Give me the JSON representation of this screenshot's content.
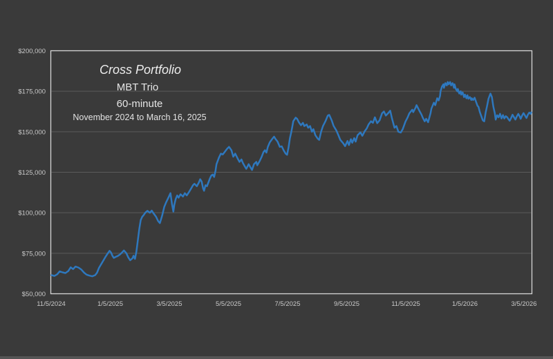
{
  "page": {
    "background_color": "#3A3A3A",
    "bottom_strip_color": "#555555"
  },
  "chart_data": {
    "type": "line",
    "title": "Cross Portfolio",
    "strategy": "MBT Trio",
    "timeframe": "60-minute",
    "date_range": "November 2024 to March 16, 2025",
    "legend": "none",
    "grid": true,
    "colors": {
      "line": "#2E78BE",
      "plot_border": "#D6D6D6",
      "gridline": "#5B5B5B",
      "axis_text": "#C9C9C9",
      "title_text": "#EDEDED",
      "background": "#3A3A3A"
    },
    "x_axis": {
      "tick_labels": [
        "11/5/2024",
        "1/5/2025",
        "3/5/2025",
        "5/5/2025",
        "7/5/2025",
        "9/5/2025",
        "11/5/2025",
        "1/5/2026",
        "3/5/2026"
      ]
    },
    "y_axis": {
      "tick_labels": [
        "$200,000",
        "$175,000",
        "$150,000",
        "$125,000",
        "$100,000",
        "$75,000",
        "$50,000"
      ],
      "min": 50000,
      "max": 200000,
      "step": 25000
    },
    "point_format": "[x_fraction_of_time_axis, equity_value_in_thousands_USD]",
    "points": [
      [
        0.0,
        61.5
      ],
      [
        0.006,
        61.0
      ],
      [
        0.012,
        62.0
      ],
      [
        0.017,
        63.8
      ],
      [
        0.023,
        63.2
      ],
      [
        0.029,
        62.8
      ],
      [
        0.035,
        64.0
      ],
      [
        0.04,
        66.3
      ],
      [
        0.045,
        65.2
      ],
      [
        0.05,
        66.8
      ],
      [
        0.056,
        66.2
      ],
      [
        0.062,
        65.0
      ],
      [
        0.068,
        63.0
      ],
      [
        0.073,
        61.8
      ],
      [
        0.079,
        61.2
      ],
      [
        0.085,
        60.8
      ],
      [
        0.091,
        61.5
      ],
      [
        0.095,
        63.0
      ],
      [
        0.099,
        66.0
      ],
      [
        0.104,
        68.5
      ],
      [
        0.108,
        70.5
      ],
      [
        0.112,
        72.5
      ],
      [
        0.117,
        74.8
      ],
      [
        0.121,
        76.5
      ],
      [
        0.124,
        75.5
      ],
      [
        0.127,
        73.5
      ],
      [
        0.13,
        72.1
      ],
      [
        0.134,
        72.8
      ],
      [
        0.138,
        73.3
      ],
      [
        0.143,
        74.3
      ],
      [
        0.147,
        75.5
      ],
      [
        0.151,
        76.7
      ],
      [
        0.156,
        75.0
      ],
      [
        0.16,
        72.5
      ],
      [
        0.164,
        70.7
      ],
      [
        0.169,
        72.0
      ],
      [
        0.171,
        73.5
      ],
      [
        0.174,
        71.5
      ],
      [
        0.177,
        76.0
      ],
      [
        0.18,
        83.0
      ],
      [
        0.183,
        90.0
      ],
      [
        0.186,
        95.5
      ],
      [
        0.189,
        97.5
      ],
      [
        0.192,
        98.5
      ],
      [
        0.196,
        100.2
      ],
      [
        0.2,
        101.2
      ],
      [
        0.205,
        100.0
      ],
      [
        0.209,
        101.3
      ],
      [
        0.213,
        99.5
      ],
      [
        0.218,
        97.5
      ],
      [
        0.222,
        95.0
      ],
      [
        0.226,
        93.6
      ],
      [
        0.231,
        98.6
      ],
      [
        0.235,
        103.6
      ],
      [
        0.239,
        106.5
      ],
      [
        0.244,
        109.5
      ],
      [
        0.248,
        112.1
      ],
      [
        0.251,
        105.7
      ],
      [
        0.254,
        100.7
      ],
      [
        0.256,
        105.0
      ],
      [
        0.259,
        108.5
      ],
      [
        0.262,
        110.7
      ],
      [
        0.265,
        109.3
      ],
      [
        0.269,
        111.4
      ],
      [
        0.274,
        110.0
      ],
      [
        0.278,
        112.1
      ],
      [
        0.282,
        110.7
      ],
      [
        0.287,
        113.0
      ],
      [
        0.291,
        115.0
      ],
      [
        0.295,
        117.0
      ],
      [
        0.298,
        117.9
      ],
      [
        0.303,
        116.4
      ],
      [
        0.307,
        118.6
      ],
      [
        0.31,
        120.7
      ],
      [
        0.313,
        119.3
      ],
      [
        0.316,
        115.0
      ],
      [
        0.318,
        113.6
      ],
      [
        0.321,
        117.0
      ],
      [
        0.324,
        116.4
      ],
      [
        0.327,
        118.6
      ],
      [
        0.33,
        121.0
      ],
      [
        0.333,
        122.9
      ],
      [
        0.336,
        123.6
      ],
      [
        0.339,
        122.1
      ],
      [
        0.342,
        126.0
      ],
      [
        0.344,
        130.0
      ],
      [
        0.349,
        134.0
      ],
      [
        0.353,
        136.5
      ],
      [
        0.357,
        136.0
      ],
      [
        0.362,
        137.9
      ],
      [
        0.366,
        139.5
      ],
      [
        0.37,
        140.7
      ],
      [
        0.375,
        138.6
      ],
      [
        0.379,
        134.6
      ],
      [
        0.383,
        136.5
      ],
      [
        0.388,
        133.5
      ],
      [
        0.392,
        131.4
      ],
      [
        0.396,
        132.9
      ],
      [
        0.399,
        130.7
      ],
      [
        0.403,
        128.6
      ],
      [
        0.406,
        127.1
      ],
      [
        0.411,
        130.0
      ],
      [
        0.415,
        127.9
      ],
      [
        0.418,
        126.4
      ],
      [
        0.422,
        130.0
      ],
      [
        0.427,
        131.4
      ],
      [
        0.429,
        129.3
      ],
      [
        0.434,
        132.0
      ],
      [
        0.438,
        134.5
      ],
      [
        0.442,
        137.5
      ],
      [
        0.445,
        138.6
      ],
      [
        0.448,
        137.1
      ],
      [
        0.451,
        140.7
      ],
      [
        0.455,
        143.5
      ],
      [
        0.46,
        145.5
      ],
      [
        0.464,
        147.0
      ],
      [
        0.467,
        145.5
      ],
      [
        0.471,
        144.0
      ],
      [
        0.476,
        140.7
      ],
      [
        0.48,
        141.0
      ],
      [
        0.484,
        138.5
      ],
      [
        0.488,
        136.5
      ],
      [
        0.491,
        135.8
      ],
      [
        0.494,
        140.0
      ],
      [
        0.497,
        146.0
      ],
      [
        0.5,
        150.0
      ],
      [
        0.504,
        156.5
      ],
      [
        0.509,
        158.7
      ],
      [
        0.512,
        158.0
      ],
      [
        0.516,
        155.7
      ],
      [
        0.52,
        154.0
      ],
      [
        0.524,
        155.5
      ],
      [
        0.527,
        153.5
      ],
      [
        0.532,
        154.5
      ],
      [
        0.535,
        152.5
      ],
      [
        0.539,
        153.5
      ],
      [
        0.543,
        150.0
      ],
      [
        0.546,
        151.6
      ],
      [
        0.55,
        147.9
      ],
      [
        0.555,
        145.7
      ],
      [
        0.558,
        145.0
      ],
      [
        0.562,
        150.0
      ],
      [
        0.566,
        153.6
      ],
      [
        0.571,
        156.5
      ],
      [
        0.576,
        160.0
      ],
      [
        0.579,
        160.4
      ],
      [
        0.584,
        157.1
      ],
      [
        0.588,
        153.6
      ],
      [
        0.594,
        150.7
      ],
      [
        0.598,
        147.9
      ],
      [
        0.602,
        145.0
      ],
      [
        0.608,
        142.9
      ],
      [
        0.612,
        141.1
      ],
      [
        0.617,
        144.3
      ],
      [
        0.62,
        141.8
      ],
      [
        0.624,
        145.4
      ],
      [
        0.627,
        143.2
      ],
      [
        0.631,
        146.1
      ],
      [
        0.634,
        143.9
      ],
      [
        0.638,
        147.9
      ],
      [
        0.644,
        149.6
      ],
      [
        0.648,
        147.5
      ],
      [
        0.653,
        150.4
      ],
      [
        0.657,
        152.0
      ],
      [
        0.661,
        154.5
      ],
      [
        0.666,
        156.5
      ],
      [
        0.67,
        155.5
      ],
      [
        0.674,
        158.9
      ],
      [
        0.679,
        155.3
      ],
      [
        0.684,
        157.1
      ],
      [
        0.689,
        161.4
      ],
      [
        0.693,
        162.5
      ],
      [
        0.697,
        160.0
      ],
      [
        0.702,
        161.5
      ],
      [
        0.706,
        163.0
      ],
      [
        0.71,
        158.0
      ],
      [
        0.715,
        152.5
      ],
      [
        0.719,
        153.5
      ],
      [
        0.723,
        150.0
      ],
      [
        0.728,
        149.5
      ],
      [
        0.732,
        151.5
      ],
      [
        0.738,
        156.4
      ],
      [
        0.742,
        158.6
      ],
      [
        0.746,
        161.4
      ],
      [
        0.752,
        163.6
      ],
      [
        0.754,
        162.1
      ],
      [
        0.759,
        164.9
      ],
      [
        0.761,
        166.4
      ],
      [
        0.767,
        162.9
      ],
      [
        0.771,
        160.7
      ],
      [
        0.774,
        158.6
      ],
      [
        0.778,
        156.4
      ],
      [
        0.781,
        158.0
      ],
      [
        0.785,
        155.9
      ],
      [
        0.79,
        161.4
      ],
      [
        0.792,
        164.3
      ],
      [
        0.797,
        167.9
      ],
      [
        0.8,
        166.4
      ],
      [
        0.804,
        170.7
      ],
      [
        0.807,
        169.3
      ],
      [
        0.81,
        172.1
      ],
      [
        0.811,
        175.0
      ],
      [
        0.814,
        177.9
      ],
      [
        0.817,
        179.3
      ],
      [
        0.818,
        177.1
      ],
      [
        0.821,
        180.0
      ],
      [
        0.824,
        178.6
      ],
      [
        0.826,
        180.7
      ],
      [
        0.828,
        179.3
      ],
      [
        0.831,
        180.7
      ],
      [
        0.833,
        178.6
      ],
      [
        0.836,
        180.0
      ],
      [
        0.839,
        177.1
      ],
      [
        0.84,
        179.3
      ],
      [
        0.843,
        176.4
      ],
      [
        0.846,
        175.0
      ],
      [
        0.847,
        176.4
      ],
      [
        0.85,
        173.6
      ],
      [
        0.853,
        175.0
      ],
      [
        0.854,
        172.9
      ],
      [
        0.857,
        174.3
      ],
      [
        0.86,
        171.4
      ],
      [
        0.862,
        172.9
      ],
      [
        0.865,
        170.7
      ],
      [
        0.867,
        172.5
      ],
      [
        0.869,
        170.4
      ],
      [
        0.872,
        171.4
      ],
      [
        0.875,
        169.6
      ],
      [
        0.876,
        170.7
      ],
      [
        0.879,
        169.6
      ],
      [
        0.882,
        171.0
      ],
      [
        0.885,
        168.5
      ],
      [
        0.888,
        166.0
      ],
      [
        0.89,
        165.4
      ],
      [
        0.893,
        162.1
      ],
      [
        0.896,
        159.6
      ],
      [
        0.899,
        157.1
      ],
      [
        0.902,
        156.4
      ],
      [
        0.905,
        161.9
      ],
      [
        0.908,
        166.1
      ],
      [
        0.911,
        170.4
      ],
      [
        0.915,
        173.6
      ],
      [
        0.918,
        171.4
      ],
      [
        0.921,
        165.5
      ],
      [
        0.924,
        161.5
      ],
      [
        0.926,
        157.5
      ],
      [
        0.929,
        160.2
      ],
      [
        0.932,
        158.9
      ],
      [
        0.935,
        161.1
      ],
      [
        0.938,
        158.2
      ],
      [
        0.941,
        160.3
      ],
      [
        0.944,
        158.2
      ],
      [
        0.947,
        159.6
      ],
      [
        0.95,
        158.9
      ],
      [
        0.952,
        158.0
      ],
      [
        0.955,
        156.8
      ],
      [
        0.958,
        158.5
      ],
      [
        0.961,
        160.5
      ],
      [
        0.964,
        159.0
      ],
      [
        0.967,
        157.5
      ],
      [
        0.97,
        159.5
      ],
      [
        0.973,
        161.0
      ],
      [
        0.976,
        159.5
      ],
      [
        0.978,
        158.0
      ],
      [
        0.981,
        160.0
      ],
      [
        0.984,
        161.5
      ],
      [
        0.987,
        160.0
      ],
      [
        0.99,
        158.5
      ],
      [
        0.993,
        160.5
      ],
      [
        0.996,
        161.8
      ],
      [
        0.999,
        161.0
      ],
      [
        1.0,
        162.0
      ]
    ]
  }
}
